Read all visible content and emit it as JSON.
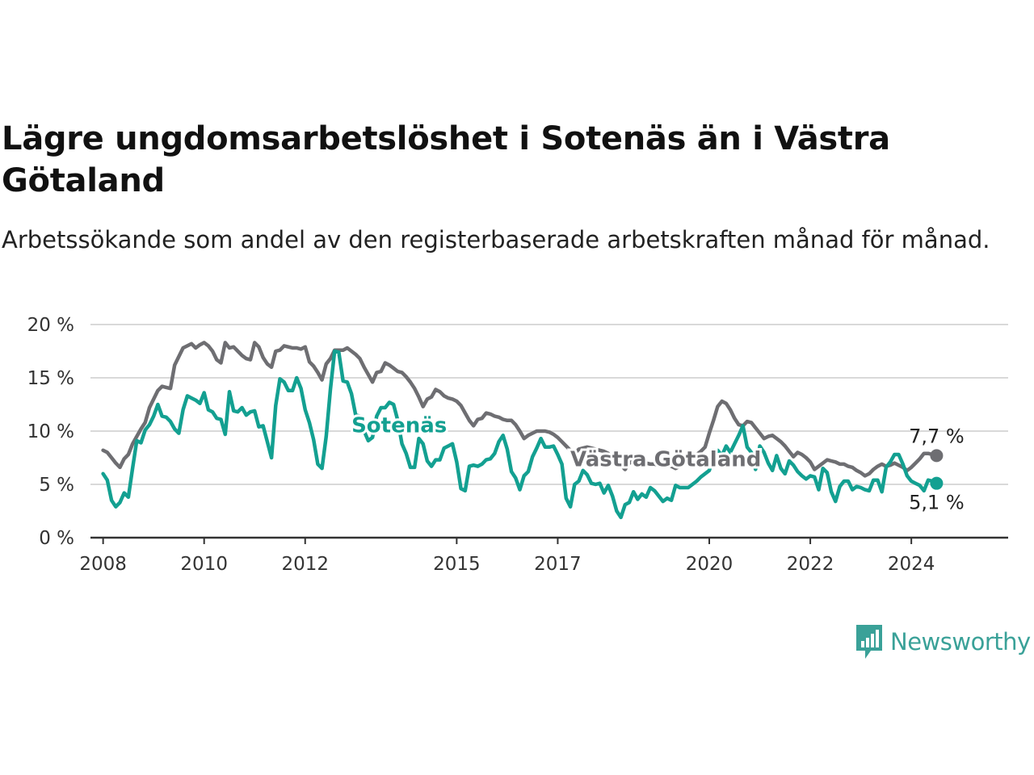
{
  "title": "Lägre ungdomsarbetslöshet i Sotenäs än i Västra Götaland",
  "subtitle": "Arbetssökande som andel av den registerbaserade arbetskraften månad för månad.",
  "brand": {
    "name": "Newsworthy"
  },
  "colors": {
    "sotenas": "#13a091",
    "vastra": "#6e6e72",
    "grid": "#d9d9d9",
    "axis": "#333333"
  },
  "chart_data": {
    "type": "line",
    "x_start": "2008-01",
    "frequency": "monthly",
    "xlim": [
      "2007-10",
      "2025-12"
    ],
    "ylim": [
      0,
      20
    ],
    "y_ticks": [
      {
        "value": 0,
        "label": "0 %"
      },
      {
        "value": 5,
        "label": "5 %"
      },
      {
        "value": 10,
        "label": "10 %"
      },
      {
        "value": 15,
        "label": "15 %"
      },
      {
        "value": 20,
        "label": "20 %"
      }
    ],
    "x_ticks": [
      {
        "value": "2008-01",
        "label": "2008"
      },
      {
        "value": "2010-01",
        "label": "2010"
      },
      {
        "value": "2012-01",
        "label": "2012"
      },
      {
        "value": "2015-01",
        "label": "2015"
      },
      {
        "value": "2017-01",
        "label": "2017"
      },
      {
        "value": "2020-01",
        "label": "2020"
      },
      {
        "value": "2022-01",
        "label": "2022"
      },
      {
        "value": "2024-01",
        "label": "2024"
      }
    ],
    "grid": true,
    "series": [
      {
        "name": "Västra Götaland",
        "color": "#6e6e72",
        "end_label": "7,7 %",
        "values": [
          8.2,
          8.0,
          7.5,
          7.0,
          6.6,
          7.4,
          7.8,
          8.8,
          9.5,
          10.2,
          10.8,
          12.2,
          13.0,
          13.8,
          14.2,
          14.1,
          14.0,
          16.2,
          17.0,
          17.8,
          18.0,
          18.2,
          17.8,
          18.1,
          18.3,
          18.0,
          17.5,
          16.7,
          16.4,
          18.3,
          17.8,
          17.9,
          17.5,
          17.1,
          16.8,
          16.7,
          18.3,
          17.9,
          16.9,
          16.3,
          16.0,
          17.5,
          17.6,
          18.0,
          17.9,
          17.8,
          17.8,
          17.7,
          17.9,
          16.5,
          16.1,
          15.5,
          14.8,
          16.3,
          16.8,
          17.6,
          17.6,
          17.6,
          17.8,
          17.5,
          17.2,
          16.8,
          16.0,
          15.3,
          14.6,
          15.5,
          15.6,
          16.4,
          16.2,
          15.9,
          15.6,
          15.5,
          15.1,
          14.6,
          14.0,
          13.2,
          12.3,
          13.0,
          13.2,
          13.9,
          13.7,
          13.3,
          13.1,
          13.0,
          12.8,
          12.4,
          11.7,
          11.0,
          10.5,
          11.1,
          11.2,
          11.7,
          11.6,
          11.4,
          11.3,
          11.1,
          11.0,
          11.0,
          10.6,
          10.0,
          9.3,
          9.6,
          9.8,
          10.0,
          10.0,
          10.0,
          9.9,
          9.7,
          9.4,
          9.0,
          8.6,
          8.2,
          7.9,
          8.3,
          8.4,
          8.5,
          8.4,
          8.3,
          8.2,
          8.1,
          7.9,
          7.5,
          7.2,
          6.8,
          6.4,
          7.0,
          7.2,
          7.3,
          7.1,
          7.0,
          6.9,
          6.9,
          6.8,
          6.9,
          6.9,
          6.7,
          6.5,
          6.7,
          7.1,
          7.5,
          7.6,
          7.8,
          8.1,
          8.5,
          9.8,
          11.0,
          12.3,
          12.8,
          12.6,
          12.0,
          11.2,
          10.6,
          10.5,
          10.9,
          10.8,
          10.3,
          9.8,
          9.3,
          9.5,
          9.6,
          9.3,
          9.0,
          8.6,
          8.1,
          7.6,
          8.0,
          7.8,
          7.5,
          7.1,
          6.4,
          6.7,
          7.0,
          7.3,
          7.2,
          7.1,
          6.9,
          6.9,
          6.7,
          6.6,
          6.3,
          6.1,
          5.8,
          6.0,
          6.4,
          6.7,
          6.9,
          6.7,
          6.8,
          7.0,
          6.8,
          6.6,
          6.3,
          6.6,
          7.0,
          7.4,
          7.9,
          7.9,
          7.8,
          7.7
        ]
      },
      {
        "name": "Sotenäs",
        "color": "#13a091",
        "end_label": "5,1 %",
        "values": [
          6.0,
          5.4,
          3.5,
          2.9,
          3.3,
          4.2,
          3.8,
          6.5,
          9.1,
          8.9,
          10.1,
          10.6,
          11.4,
          12.5,
          11.4,
          11.3,
          10.9,
          10.2,
          9.8,
          12.0,
          13.3,
          13.1,
          12.9,
          12.6,
          13.6,
          12.0,
          11.8,
          11.2,
          11.1,
          9.7,
          13.7,
          11.9,
          11.8,
          12.2,
          11.5,
          11.8,
          11.9,
          10.4,
          10.5,
          9.0,
          7.5,
          12.4,
          14.9,
          14.6,
          13.8,
          13.8,
          15.0,
          14.0,
          12.0,
          10.8,
          9.2,
          6.9,
          6.5,
          9.5,
          13.9,
          17.5,
          17.4,
          14.7,
          14.6,
          13.5,
          11.5,
          11.4,
          10.0,
          9.1,
          9.4,
          11.4,
          12.2,
          12.2,
          12.7,
          12.5,
          11.0,
          8.8,
          7.9,
          6.6,
          6.6,
          9.3,
          8.8,
          7.2,
          6.7,
          7.3,
          7.3,
          8.4,
          8.6,
          8.8,
          7.1,
          4.6,
          4.4,
          6.7,
          6.8,
          6.7,
          6.9,
          7.3,
          7.4,
          7.9,
          9.0,
          9.6,
          8.3,
          6.2,
          5.6,
          4.5,
          5.8,
          6.2,
          7.6,
          8.4,
          9.3,
          8.5,
          8.5,
          8.6,
          7.8,
          6.9,
          3.7,
          2.9,
          5.0,
          5.3,
          6.3,
          5.9,
          5.1,
          5.0,
          5.1,
          4.2,
          4.9,
          3.9,
          2.5,
          1.9,
          3.1,
          3.3,
          4.3,
          3.6,
          4.1,
          3.8,
          4.7,
          4.4,
          3.9,
          3.4,
          3.7,
          3.5,
          4.9,
          4.7,
          4.7,
          4.7,
          5.0,
          5.3,
          5.7,
          6.0,
          6.3,
          7.5,
          8.2,
          7.7,
          8.6,
          8.0,
          8.8,
          9.6,
          10.5,
          8.5,
          8.0,
          6.4,
          8.6,
          8.0,
          7.0,
          6.3,
          7.7,
          6.5,
          6.0,
          7.2,
          6.8,
          6.2,
          5.8,
          5.5,
          5.8,
          5.7,
          4.5,
          6.5,
          6.1,
          4.3,
          3.4,
          4.8,
          5.3,
          5.3,
          4.5,
          4.8,
          4.7,
          4.5,
          4.4,
          5.4,
          5.4,
          4.3,
          6.6,
          7.1,
          7.8,
          7.8,
          6.9,
          5.8,
          5.3,
          5.1,
          4.9,
          4.4,
          5.4,
          5.3,
          5.1
        ]
      }
    ]
  }
}
